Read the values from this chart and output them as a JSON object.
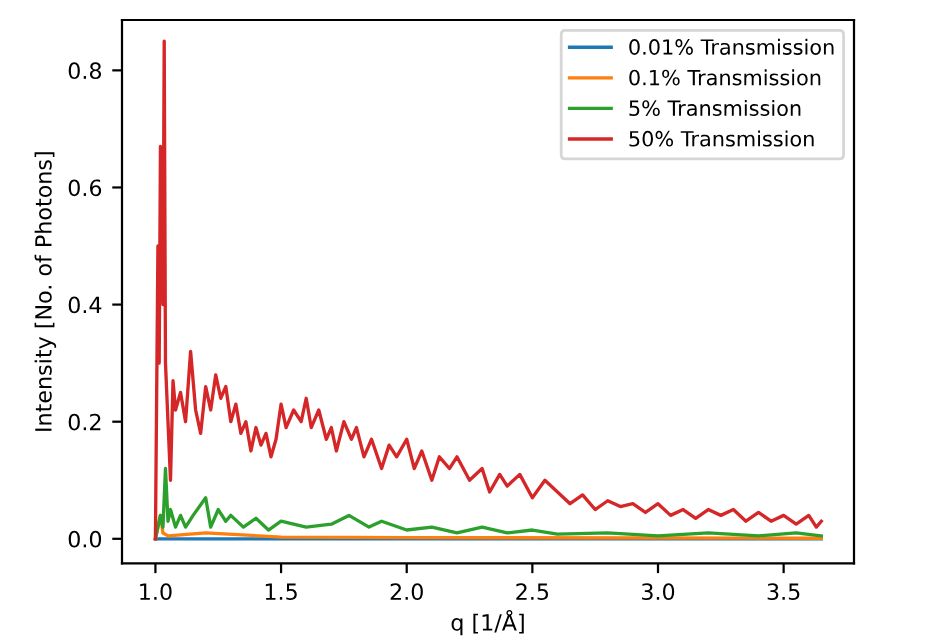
{
  "chart_data": {
    "type": "line",
    "xlabel": "q [1/Å]",
    "ylabel": "Intensity [No. of Photons]",
    "xlim": [
      0.867,
      3.78
    ],
    "ylim": [
      -0.042,
      0.886
    ],
    "xticks": [
      {
        "value": 1.0,
        "label": "1.0"
      },
      {
        "value": 1.5,
        "label": "1.5"
      },
      {
        "value": 2.0,
        "label": "2.0"
      },
      {
        "value": 2.5,
        "label": "2.5"
      },
      {
        "value": 3.0,
        "label": "3.0"
      },
      {
        "value": 3.5,
        "label": "3.5"
      }
    ],
    "yticks": [
      {
        "value": 0.0,
        "label": "0.0"
      },
      {
        "value": 0.2,
        "label": "0.2"
      },
      {
        "value": 0.4,
        "label": "0.4"
      },
      {
        "value": 0.6,
        "label": "0.6"
      },
      {
        "value": 0.8,
        "label": "0.8"
      }
    ],
    "legend": "top right",
    "grid": false,
    "series": [
      {
        "name": "0.01% Transmission",
        "color": "#1f77b4",
        "x": [
          1.0,
          1.5,
          2.0,
          2.5,
          3.0,
          3.65
        ],
        "values": [
          0,
          0,
          0,
          0,
          0,
          0
        ]
      },
      {
        "name": "0.1% Transmission",
        "color": "#ff7f0e",
        "x": [
          1.0,
          1.02,
          1.03,
          1.05,
          1.2,
          1.5,
          2.0,
          3.65
        ],
        "values": [
          0,
          0.04,
          0.01,
          0.005,
          0.01,
          0.003,
          0.002,
          0.001
        ]
      },
      {
        "name": "5% Transmission",
        "color": "#2ca02c",
        "x": [
          1.0,
          1.02,
          1.03,
          1.04,
          1.05,
          1.06,
          1.08,
          1.1,
          1.12,
          1.15,
          1.2,
          1.22,
          1.25,
          1.28,
          1.3,
          1.35,
          1.4,
          1.45,
          1.5,
          1.6,
          1.7,
          1.77,
          1.85,
          1.9,
          2.0,
          2.1,
          2.2,
          2.3,
          2.4,
          2.5,
          2.6,
          2.8,
          3.0,
          3.2,
          3.4,
          3.55,
          3.65
        ],
        "values": [
          0,
          0.04,
          0.02,
          0.12,
          0.03,
          0.05,
          0.02,
          0.04,
          0.02,
          0.04,
          0.07,
          0.02,
          0.05,
          0.03,
          0.04,
          0.02,
          0.035,
          0.015,
          0.03,
          0.02,
          0.025,
          0.04,
          0.02,
          0.03,
          0.015,
          0.02,
          0.01,
          0.02,
          0.01,
          0.015,
          0.008,
          0.01,
          0.005,
          0.01,
          0.005,
          0.01,
          0.005
        ]
      },
      {
        "name": "50% Transmission",
        "color": "#d62728",
        "x": [
          1.0,
          1.01,
          1.015,
          1.02,
          1.03,
          1.035,
          1.04,
          1.05,
          1.06,
          1.07,
          1.08,
          1.1,
          1.12,
          1.14,
          1.16,
          1.18,
          1.2,
          1.22,
          1.24,
          1.26,
          1.28,
          1.3,
          1.32,
          1.34,
          1.36,
          1.38,
          1.4,
          1.42,
          1.44,
          1.46,
          1.48,
          1.5,
          1.52,
          1.55,
          1.58,
          1.6,
          1.62,
          1.65,
          1.68,
          1.7,
          1.72,
          1.75,
          1.78,
          1.8,
          1.83,
          1.86,
          1.9,
          1.93,
          1.96,
          2.0,
          2.03,
          2.06,
          2.1,
          2.13,
          2.17,
          2.2,
          2.25,
          2.3,
          2.33,
          2.37,
          2.4,
          2.45,
          2.5,
          2.55,
          2.6,
          2.65,
          2.7,
          2.75,
          2.8,
          2.85,
          2.9,
          2.95,
          3.0,
          3.05,
          3.1,
          3.15,
          3.2,
          3.25,
          3.3,
          3.35,
          3.4,
          3.45,
          3.5,
          3.55,
          3.6,
          3.63,
          3.65
        ],
        "values": [
          0,
          0.5,
          0.3,
          0.67,
          0.4,
          0.85,
          0.3,
          0.2,
          0.1,
          0.27,
          0.22,
          0.25,
          0.2,
          0.32,
          0.22,
          0.18,
          0.26,
          0.22,
          0.28,
          0.24,
          0.26,
          0.2,
          0.23,
          0.18,
          0.2,
          0.15,
          0.19,
          0.16,
          0.18,
          0.14,
          0.17,
          0.23,
          0.19,
          0.22,
          0.2,
          0.24,
          0.19,
          0.22,
          0.17,
          0.19,
          0.15,
          0.2,
          0.17,
          0.19,
          0.14,
          0.17,
          0.12,
          0.16,
          0.14,
          0.17,
          0.12,
          0.15,
          0.1,
          0.14,
          0.12,
          0.14,
          0.1,
          0.12,
          0.08,
          0.11,
          0.09,
          0.11,
          0.07,
          0.1,
          0.08,
          0.06,
          0.075,
          0.05,
          0.065,
          0.055,
          0.06,
          0.045,
          0.06,
          0.04,
          0.05,
          0.035,
          0.05,
          0.04,
          0.05,
          0.03,
          0.045,
          0.03,
          0.04,
          0.025,
          0.04,
          0.02,
          0.03
        ]
      }
    ]
  }
}
